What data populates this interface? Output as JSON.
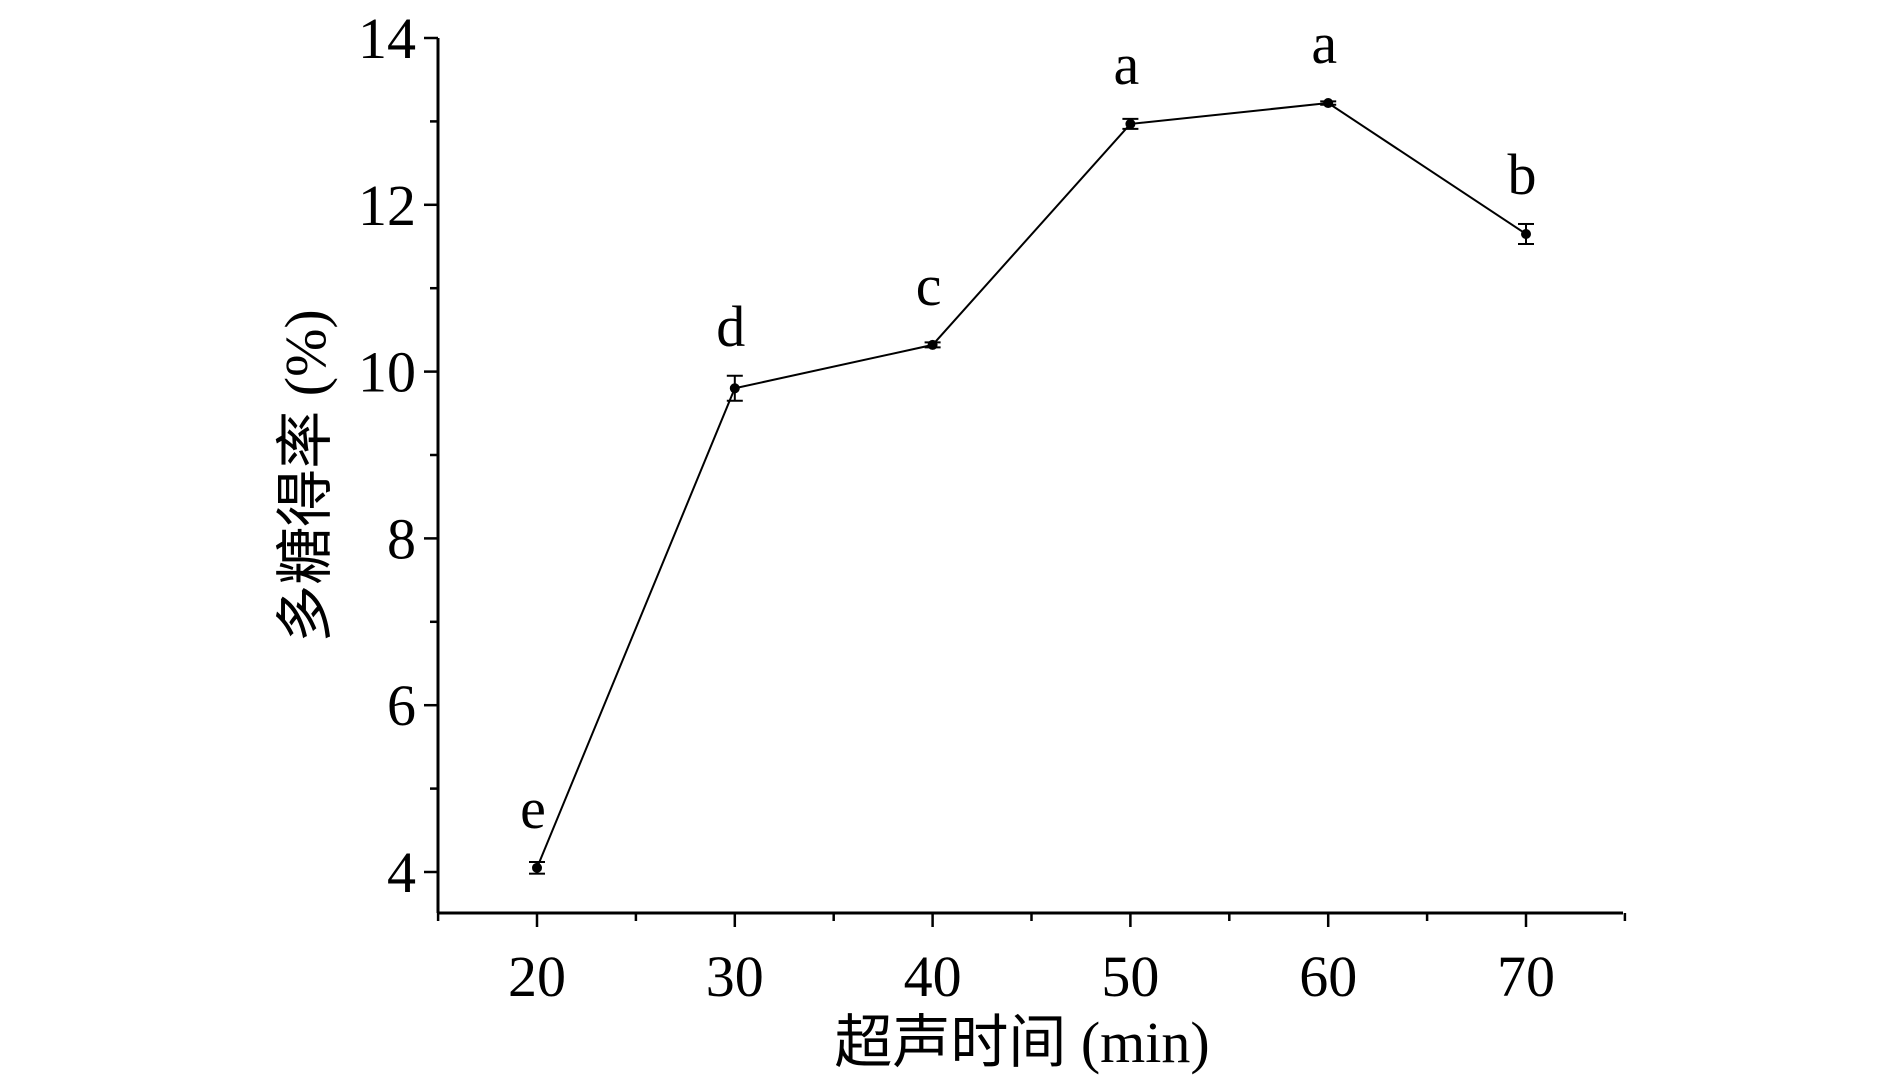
{
  "chart_data": {
    "type": "line",
    "title": "",
    "xlabel": "超声时间 (min)",
    "ylabel": "多糖得率 (%)",
    "xlim": [
      15,
      75
    ],
    "ylim": [
      3.5,
      14
    ],
    "xticks": [
      20,
      30,
      40,
      50,
      60,
      70
    ],
    "yticks": [
      4,
      6,
      8,
      10,
      12,
      14
    ],
    "grid": false,
    "x": [
      20,
      30,
      40,
      50,
      60,
      70
    ],
    "y": [
      4.05,
      9.8,
      10.32,
      12.97,
      13.22,
      11.65
    ],
    "error": [
      0.07,
      0.15,
      0.03,
      0.06,
      0.02,
      0.12
    ],
    "significance_labels": [
      "e",
      "d",
      "c",
      "a",
      "a",
      "b"
    ],
    "color": "#000000"
  }
}
